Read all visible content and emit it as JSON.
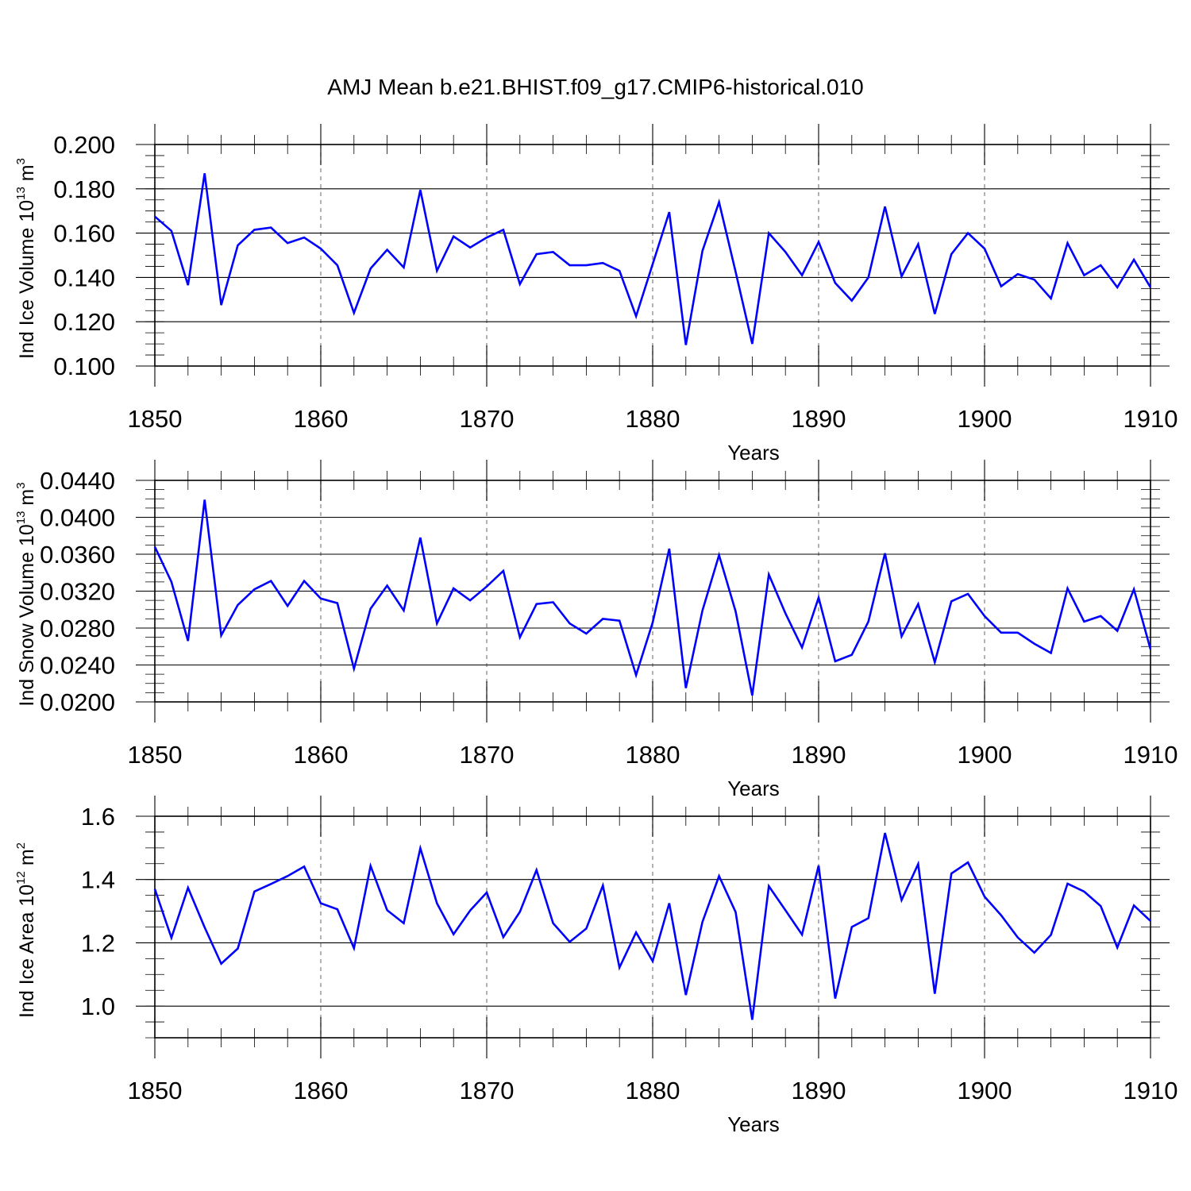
{
  "title": "AMJ Mean b.e21.BHIST.f09_g17.CMIP6-historical.010",
  "colors": {
    "line": "#0000ff",
    "axis": "#000000",
    "grid": "#888888"
  },
  "chart_data": [
    {
      "type": "line",
      "ylabel": {
        "pre": "Ind Ice Volume 10",
        "exp": "13",
        "mid": " m",
        "unit_exp": "3"
      },
      "xlabel": "Years",
      "xlim": [
        1850,
        1910
      ],
      "ylim": [
        0.1,
        0.2
      ],
      "x_ticks": [
        "1850",
        "1860",
        "1870",
        "1880",
        "1890",
        "1900",
        "1910"
      ],
      "y_ticks": [
        "0.100",
        "0.120",
        "0.140",
        "0.160",
        "0.180",
        "0.200"
      ],
      "grid": "vertical dashed at major x ticks",
      "series": [
        {
          "name": "Ind Ice Volume",
          "values": [
            0.1675,
            0.161,
            0.1365,
            0.187,
            0.1275,
            0.1545,
            0.1615,
            0.1625,
            0.1555,
            0.158,
            0.153,
            0.1455,
            0.124,
            0.144,
            0.1525,
            0.1445,
            0.1795,
            0.143,
            0.1585,
            0.1535,
            0.158,
            0.1615,
            0.137,
            0.1505,
            0.1515,
            0.1455,
            0.1455,
            0.1465,
            0.143,
            0.1225,
            0.146,
            0.1695,
            0.1095,
            0.152,
            0.174,
            0.1425,
            0.11,
            0.16,
            0.1515,
            0.141,
            0.156,
            0.1375,
            0.1295,
            0.14,
            0.172,
            0.1405,
            0.155,
            0.1235,
            0.1505,
            0.16,
            0.153,
            0.136,
            0.1415,
            0.139,
            0.1305,
            0.1555,
            0.141,
            0.1455,
            0.1355,
            0.148,
            0.1355
          ]
        }
      ]
    },
    {
      "type": "line",
      "ylabel": {
        "pre": "Ind Snow Volume 10",
        "exp": "13",
        "mid": " m",
        "unit_exp": "3"
      },
      "xlabel": "Years",
      "xlim": [
        1850,
        1910
      ],
      "ylim": [
        0.02,
        0.044
      ],
      "x_ticks": [
        "1850",
        "1860",
        "1870",
        "1880",
        "1890",
        "1900",
        "1910"
      ],
      "y_ticks": [
        "0.0200",
        "0.0240",
        "0.0280",
        "0.0320",
        "0.0360",
        "0.0400",
        "0.0440"
      ],
      "grid": "vertical dashed at major x ticks",
      "series": [
        {
          "name": "Ind Snow Volume",
          "values": [
            0.0368,
            0.033,
            0.0266,
            0.0419,
            0.0272,
            0.0305,
            0.0322,
            0.0331,
            0.0304,
            0.0331,
            0.0312,
            0.0307,
            0.0236,
            0.0301,
            0.0326,
            0.0299,
            0.0378,
            0.0285,
            0.0323,
            0.031,
            0.0325,
            0.0342,
            0.027,
            0.0306,
            0.0308,
            0.0285,
            0.0274,
            0.029,
            0.0288,
            0.0229,
            0.0286,
            0.0366,
            0.0215,
            0.0299,
            0.0359,
            0.0298,
            0.0207,
            0.0338,
            0.0296,
            0.0259,
            0.0313,
            0.0244,
            0.0251,
            0.0287,
            0.0361,
            0.0271,
            0.0306,
            0.0243,
            0.0309,
            0.0317,
            0.0293,
            0.0275,
            0.0275,
            0.0263,
            0.0253,
            0.0323,
            0.0287,
            0.0293,
            0.0277,
            0.0322,
            0.0257
          ]
        }
      ]
    },
    {
      "type": "line",
      "ylabel": {
        "pre": "Ind Ice Area 10",
        "exp": "12",
        "mid": " m",
        "unit_exp": "2"
      },
      "xlabel": "Years",
      "xlim": [
        1850,
        1910
      ],
      "ylim": [
        0.9,
        1.6
      ],
      "x_ticks": [
        "1850",
        "1860",
        "1870",
        "1880",
        "1890",
        "1900",
        "1910"
      ],
      "y_ticks": [
        "1.0",
        "1.2",
        "1.4",
        "1.6"
      ],
      "grid": "vertical dashed at major x ticks",
      "series": [
        {
          "name": "Ind Ice Area",
          "values": [
            1.37,
            1.216,
            1.374,
            1.249,
            1.134,
            1.182,
            1.362,
            1.386,
            1.411,
            1.441,
            1.325,
            1.306,
            1.183,
            1.443,
            1.303,
            1.262,
            1.499,
            1.325,
            1.227,
            1.302,
            1.359,
            1.218,
            1.298,
            1.43,
            1.262,
            1.203,
            1.245,
            1.381,
            1.122,
            1.233,
            1.142,
            1.325,
            1.035,
            1.266,
            1.411,
            1.297,
            0.957,
            1.379,
            1.303,
            1.226,
            1.444,
            1.024,
            1.25,
            1.278,
            1.547,
            1.335,
            1.449,
            1.039,
            1.419,
            1.454,
            1.346,
            1.287,
            1.217,
            1.169,
            1.225,
            1.387,
            1.362,
            1.316,
            1.185,
            1.318,
            1.269
          ]
        }
      ]
    }
  ]
}
